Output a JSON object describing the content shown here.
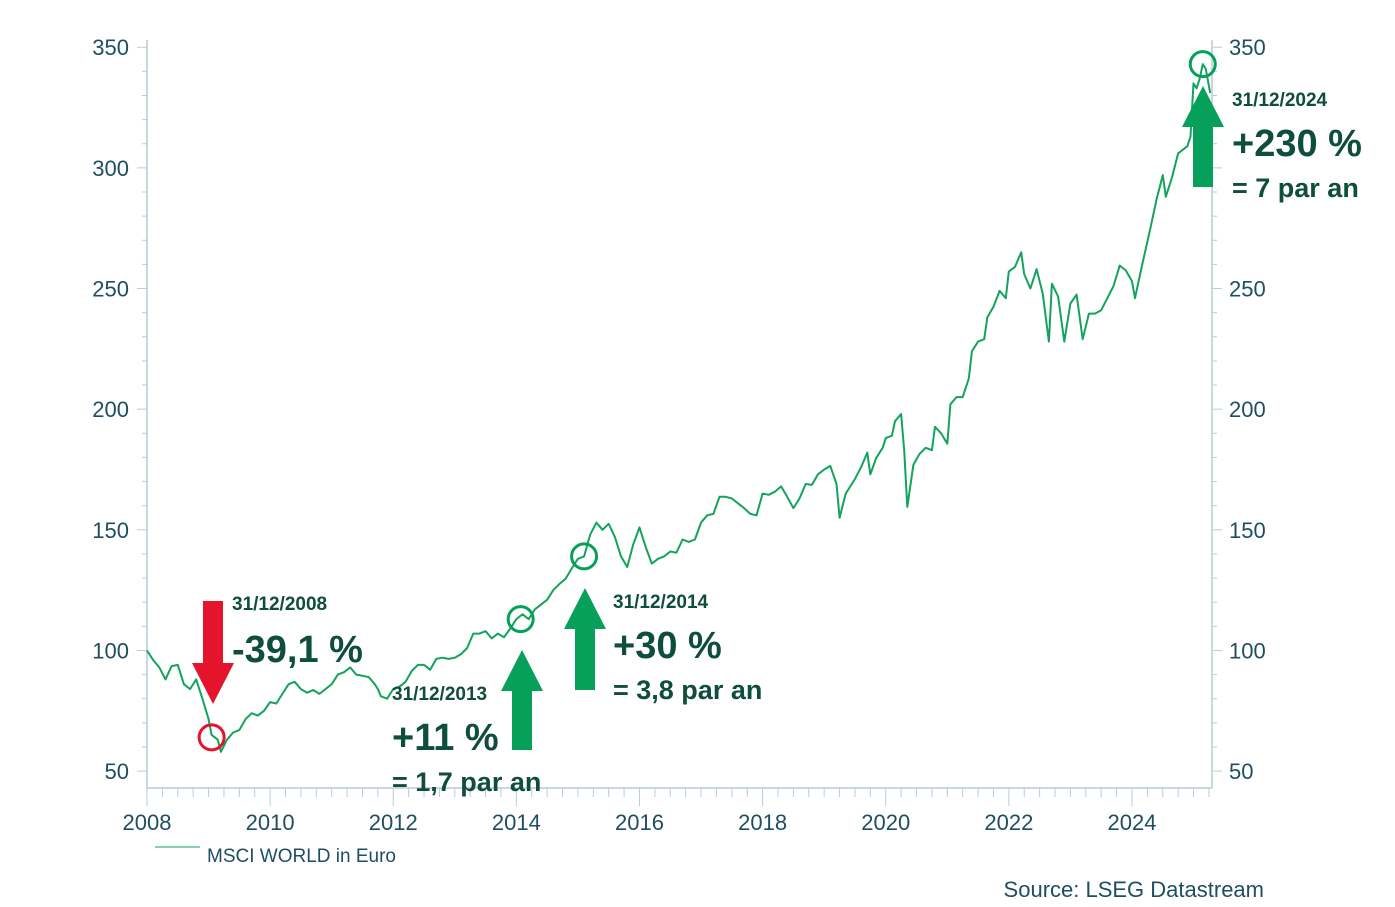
{
  "chart_data": {
    "type": "line",
    "title": "",
    "xlabel": "",
    "ylabel": "",
    "xlim": [
      2008,
      2025.3
    ],
    "ylim": [
      43,
      353
    ],
    "x_ticks": [
      "2008",
      "2010",
      "2012",
      "2014",
      "2016",
      "2018",
      "2020",
      "2022",
      "2024"
    ],
    "y_ticks": [
      "50",
      "100",
      "150",
      "200",
      "250",
      "300",
      "350"
    ],
    "y_axis_sides": "left and right",
    "grid": false,
    "legend_placement": "bottom-left",
    "colors": {
      "line": "#13a35c",
      "up_arrow": "#07a05a",
      "down_arrow": "#e3142b",
      "text": "#0f4d3c",
      "axis": "#1f4e63",
      "axis_line": "#b9ccd3"
    },
    "series": [
      {
        "name": "MSCI WORLD in Euro",
        "points": [
          [
            2008.0,
            100
          ],
          [
            2008.1,
            96
          ],
          [
            2008.2,
            93
          ],
          [
            2008.3,
            88
          ],
          [
            2008.4,
            93.5
          ],
          [
            2008.5,
            94
          ],
          [
            2008.6,
            86
          ],
          [
            2008.7,
            84
          ],
          [
            2008.8,
            88
          ],
          [
            2008.9,
            80
          ],
          [
            2009.0,
            71.5
          ],
          [
            2009.05,
            65
          ],
          [
            2009.1,
            64
          ],
          [
            2009.15,
            63
          ],
          [
            2009.2,
            58
          ],
          [
            2009.3,
            63
          ],
          [
            2009.4,
            66
          ],
          [
            2009.5,
            67
          ],
          [
            2009.6,
            71.5
          ],
          [
            2009.7,
            74
          ],
          [
            2009.8,
            73
          ],
          [
            2009.9,
            75
          ],
          [
            2010.0,
            78.6
          ],
          [
            2010.1,
            78
          ],
          [
            2010.2,
            82
          ],
          [
            2010.3,
            86
          ],
          [
            2010.4,
            87
          ],
          [
            2010.5,
            84
          ],
          [
            2010.6,
            82.5
          ],
          [
            2010.7,
            83.6
          ],
          [
            2010.8,
            82
          ],
          [
            2010.9,
            84
          ],
          [
            2011.0,
            86
          ],
          [
            2011.1,
            90
          ],
          [
            2011.2,
            91
          ],
          [
            2011.3,
            93
          ],
          [
            2011.4,
            90
          ],
          [
            2011.5,
            89.5
          ],
          [
            2011.6,
            89
          ],
          [
            2011.7,
            86
          ],
          [
            2011.75,
            84
          ],
          [
            2011.8,
            81
          ],
          [
            2011.9,
            80
          ],
          [
            2012.0,
            84
          ],
          [
            2012.1,
            85
          ],
          [
            2012.2,
            87
          ],
          [
            2012.3,
            91.5
          ],
          [
            2012.4,
            94
          ],
          [
            2012.5,
            94
          ],
          [
            2012.6,
            92
          ],
          [
            2012.7,
            96.5
          ],
          [
            2012.8,
            97
          ],
          [
            2012.9,
            96.5
          ],
          [
            2013.0,
            97
          ],
          [
            2013.1,
            98.5
          ],
          [
            2013.2,
            101
          ],
          [
            2013.3,
            107
          ],
          [
            2013.4,
            107
          ],
          [
            2013.5,
            108
          ],
          [
            2013.6,
            105
          ],
          [
            2013.7,
            107
          ],
          [
            2013.8,
            105.5
          ],
          [
            2013.9,
            109
          ],
          [
            2014.0,
            113
          ],
          [
            2014.1,
            115
          ],
          [
            2014.2,
            113
          ],
          [
            2014.3,
            117
          ],
          [
            2014.4,
            119
          ],
          [
            2014.5,
            121
          ],
          [
            2014.6,
            125
          ],
          [
            2014.7,
            127.6
          ],
          [
            2014.8,
            129.7
          ],
          [
            2014.9,
            134
          ],
          [
            2015.0,
            138
          ],
          [
            2015.1,
            139
          ],
          [
            2015.2,
            148
          ],
          [
            2015.3,
            153
          ],
          [
            2015.4,
            150
          ],
          [
            2015.5,
            152.5
          ],
          [
            2015.6,
            147
          ],
          [
            2015.7,
            139
          ],
          [
            2015.8,
            134.6
          ],
          [
            2015.9,
            144
          ],
          [
            2016.0,
            151
          ],
          [
            2016.1,
            143
          ],
          [
            2016.2,
            136
          ],
          [
            2016.3,
            138
          ],
          [
            2016.4,
            139
          ],
          [
            2016.5,
            141
          ],
          [
            2016.6,
            140.5
          ],
          [
            2016.7,
            146
          ],
          [
            2016.8,
            145
          ],
          [
            2016.9,
            146
          ],
          [
            2017.0,
            153
          ],
          [
            2017.1,
            156
          ],
          [
            2017.2,
            156.6
          ],
          [
            2017.3,
            163.7
          ],
          [
            2017.4,
            163.7
          ],
          [
            2017.5,
            163
          ],
          [
            2017.6,
            161
          ],
          [
            2017.7,
            159
          ],
          [
            2017.8,
            156.6
          ],
          [
            2017.9,
            156
          ],
          [
            2018.0,
            165
          ],
          [
            2018.1,
            164.5
          ],
          [
            2018.2,
            165.8
          ],
          [
            2018.3,
            168
          ],
          [
            2018.4,
            163.7
          ],
          [
            2018.5,
            159
          ],
          [
            2018.6,
            163
          ],
          [
            2018.7,
            169
          ],
          [
            2018.8,
            168.6
          ],
          [
            2018.9,
            173
          ],
          [
            2019.0,
            175
          ],
          [
            2019.1,
            176.5
          ],
          [
            2019.2,
            169
          ],
          [
            2019.25,
            155
          ],
          [
            2019.35,
            165
          ],
          [
            2019.5,
            171
          ],
          [
            2019.6,
            176
          ],
          [
            2019.7,
            182
          ],
          [
            2019.75,
            173
          ],
          [
            2019.85,
            180
          ],
          [
            2019.95,
            184
          ],
          [
            2020.0,
            188
          ],
          [
            2020.1,
            189
          ],
          [
            2020.15,
            195
          ],
          [
            2020.25,
            198
          ],
          [
            2020.3,
            183
          ],
          [
            2020.35,
            159.5
          ],
          [
            2020.45,
            177
          ],
          [
            2020.55,
            181.5
          ],
          [
            2020.65,
            184
          ],
          [
            2020.75,
            183
          ],
          [
            2020.8,
            192.7
          ],
          [
            2020.9,
            190
          ],
          [
            2021.0,
            185.7
          ],
          [
            2021.05,
            202
          ],
          [
            2021.15,
            205
          ],
          [
            2021.25,
            205
          ],
          [
            2021.35,
            212.7
          ],
          [
            2021.4,
            224
          ],
          [
            2021.5,
            228
          ],
          [
            2021.6,
            229
          ],
          [
            2021.65,
            238
          ],
          [
            2021.75,
            242.5
          ],
          [
            2021.85,
            249
          ],
          [
            2021.95,
            246
          ],
          [
            2022.0,
            257
          ],
          [
            2022.1,
            259
          ],
          [
            2022.2,
            265
          ],
          [
            2022.25,
            256
          ],
          [
            2022.35,
            250
          ],
          [
            2022.45,
            258
          ],
          [
            2022.55,
            248
          ],
          [
            2022.65,
            228
          ],
          [
            2022.7,
            252
          ],
          [
            2022.8,
            246.7
          ],
          [
            2022.9,
            228
          ],
          [
            2023.0,
            243.8
          ],
          [
            2023.1,
            247.5
          ],
          [
            2023.2,
            229
          ],
          [
            2023.3,
            239.6
          ],
          [
            2023.4,
            239.6
          ],
          [
            2023.5,
            241
          ],
          [
            2023.6,
            246
          ],
          [
            2023.7,
            251
          ],
          [
            2023.8,
            259.5
          ],
          [
            2023.9,
            257.5
          ],
          [
            2024.0,
            253
          ],
          [
            2024.05,
            246
          ],
          [
            2024.15,
            258
          ],
          [
            2024.3,
            275
          ],
          [
            2024.4,
            287
          ],
          [
            2024.5,
            297
          ],
          [
            2024.55,
            288
          ],
          [
            2024.65,
            296
          ],
          [
            2024.75,
            306
          ],
          [
            2024.85,
            308
          ],
          [
            2024.9,
            309
          ],
          [
            2024.95,
            313
          ],
          [
            2025.0,
            335
          ],
          [
            2025.05,
            333
          ],
          [
            2025.1,
            337
          ],
          [
            2025.15,
            343
          ],
          [
            2025.2,
            341
          ],
          [
            2025.27,
            331
          ]
        ]
      }
    ],
    "annotations": [
      {
        "date": "31/12/2008",
        "change": "-39,1 %",
        "rate": "",
        "direction": "down",
        "marker": [
          2009.05,
          64
        ]
      },
      {
        "date": "31/12/2013",
        "change": "+11 %",
        "rate": "= 1,7 par an",
        "direction": "up",
        "marker": [
          2014.07,
          113
        ]
      },
      {
        "date": "31/12/2014",
        "change": "+30 %",
        "rate": "= 3,8 par an",
        "direction": "up",
        "marker": [
          2015.1,
          139
        ]
      },
      {
        "date": "31/12/2024",
        "change": "+230 %",
        "rate": "= 7 par an",
        "direction": "up",
        "marker": [
          2025.15,
          343
        ]
      }
    ],
    "source": "Source: LSEG Datastream"
  }
}
